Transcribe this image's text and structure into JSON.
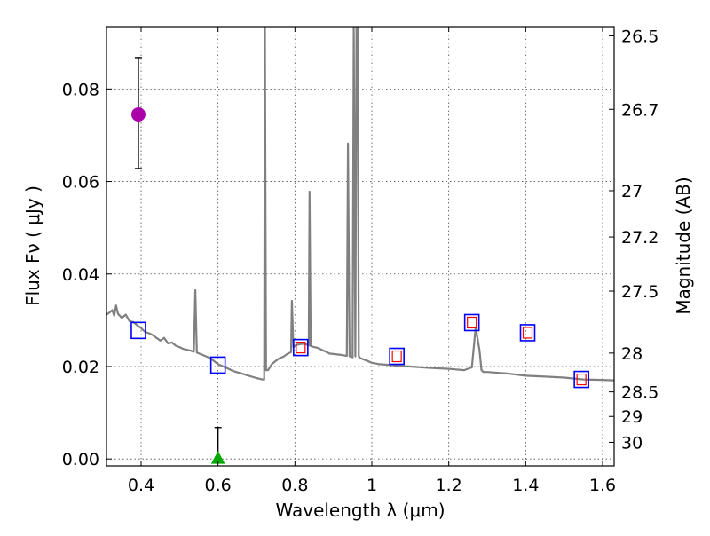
{
  "chart_data": {
    "type": "scatter",
    "xlabel": "Wavelength  λ (μm)",
    "ylabel": "Flux  Fν  ( μJy )",
    "ylabel_right": "Magnitude (AB)",
    "xlim": [
      0.31,
      1.63
    ],
    "ylim": [
      -0.0015,
      0.0935
    ],
    "grid": true,
    "x_ticks": [
      0.4,
      0.6,
      0.8,
      1.0,
      1.2,
      1.4,
      1.6
    ],
    "x_tick_labels": [
      "0.4",
      "0.6",
      "0.8",
      "1",
      "1.2",
      "1.4",
      "1.6"
    ],
    "y_ticks": [
      0.0,
      0.02,
      0.04,
      0.06,
      0.08
    ],
    "y_tick_labels": [
      "0.00",
      "0.02",
      "0.04",
      "0.06",
      "0.08"
    ],
    "right_ticks": [
      {
        "flux": 0.0915,
        "label": "26.5"
      },
      {
        "flux": 0.0756,
        "label": "26.7"
      },
      {
        "flux": 0.058,
        "label": "27"
      },
      {
        "flux": 0.048,
        "label": "27.2"
      },
      {
        "flux": 0.0363,
        "label": "27.5"
      },
      {
        "flux": 0.0229,
        "label": "28"
      },
      {
        "flux": 0.0145,
        "label": "28.5"
      },
      {
        "flux": 0.0092,
        "label": "29"
      },
      {
        "flux": 0.0036,
        "label": "30"
      }
    ],
    "model_spectrum": {
      "color": "#808080",
      "points": [
        [
          0.31,
          0.0312
        ],
        [
          0.32,
          0.0318
        ],
        [
          0.325,
          0.0322
        ],
        [
          0.33,
          0.031
        ],
        [
          0.335,
          0.0332
        ],
        [
          0.34,
          0.0314
        ],
        [
          0.35,
          0.0305
        ],
        [
          0.36,
          0.0312
        ],
        [
          0.37,
          0.0298
        ],
        [
          0.38,
          0.0296
        ],
        [
          0.39,
          0.0289
        ],
        [
          0.4,
          0.0283
        ],
        [
          0.41,
          0.0275
        ],
        [
          0.42,
          0.0272
        ],
        [
          0.43,
          0.0268
        ],
        [
          0.44,
          0.0262
        ],
        [
          0.45,
          0.0256
        ],
        [
          0.46,
          0.0262
        ],
        [
          0.47,
          0.025
        ],
        [
          0.48,
          0.0252
        ],
        [
          0.49,
          0.0245
        ],
        [
          0.5,
          0.0242
        ],
        [
          0.51,
          0.0238
        ],
        [
          0.52,
          0.0236
        ],
        [
          0.53,
          0.0234
        ],
        [
          0.537,
          0.0232
        ],
        [
          0.541,
          0.0365
        ],
        [
          0.545,
          0.023
        ],
        [
          0.56,
          0.0225
        ],
        [
          0.58,
          0.0218
        ],
        [
          0.6,
          0.0205
        ],
        [
          0.62,
          0.0198
        ],
        [
          0.64,
          0.019
        ],
        [
          0.66,
          0.0185
        ],
        [
          0.68,
          0.018
        ],
        [
          0.7,
          0.0175
        ],
        [
          0.715,
          0.0172
        ],
        [
          0.72,
          0.0172
        ],
        [
          0.722,
          0.0935
        ],
        [
          0.725,
          0.0192
        ],
        [
          0.73,
          0.0192
        ],
        [
          0.74,
          0.0205
        ],
        [
          0.75,
          0.0212
        ],
        [
          0.76,
          0.0218
        ],
        [
          0.77,
          0.0221
        ],
        [
          0.78,
          0.0227
        ],
        [
          0.79,
          0.0231
        ],
        [
          0.792,
          0.0342
        ],
        [
          0.796,
          0.0242
        ],
        [
          0.8,
          0.0245
        ],
        [
          0.81,
          0.0248
        ],
        [
          0.82,
          0.0249
        ],
        [
          0.83,
          0.0248
        ],
        [
          0.836,
          0.0245
        ],
        [
          0.838,
          0.0578
        ],
        [
          0.841,
          0.0244
        ],
        [
          0.85,
          0.0242
        ],
        [
          0.86,
          0.024
        ],
        [
          0.87,
          0.0236
        ],
        [
          0.88,
          0.0232
        ],
        [
          0.89,
          0.0228
        ],
        [
          0.9,
          0.0227
        ],
        [
          0.91,
          0.0226
        ],
        [
          0.92,
          0.0225
        ],
        [
          0.935,
          0.0223
        ],
        [
          0.938,
          0.0682
        ],
        [
          0.942,
          0.0222
        ],
        [
          0.95,
          0.022
        ],
        [
          0.953,
          0.0935
        ],
        [
          0.957,
          0.0222
        ],
        [
          0.96,
          0.0935
        ],
        [
          0.963,
          0.0935
        ],
        [
          0.966,
          0.0222
        ],
        [
          0.97,
          0.0218
        ],
        [
          0.98,
          0.0215
        ],
        [
          1.0,
          0.0208
        ],
        [
          1.02,
          0.0205
        ],
        [
          1.05,
          0.0203
        ],
        [
          1.08,
          0.0201
        ],
        [
          1.1,
          0.02
        ],
        [
          1.15,
          0.0197
        ],
        [
          1.2,
          0.0195
        ],
        [
          1.24,
          0.0192
        ],
        [
          1.26,
          0.0198
        ],
        [
          1.27,
          0.0285
        ],
        [
          1.28,
          0.0235
        ],
        [
          1.285,
          0.0192
        ],
        [
          1.29,
          0.0188
        ],
        [
          1.3,
          0.0188
        ],
        [
          1.35,
          0.0185
        ],
        [
          1.4,
          0.018
        ],
        [
          1.45,
          0.0178
        ],
        [
          1.5,
          0.0176
        ],
        [
          1.55,
          0.0172
        ],
        [
          1.6,
          0.0171
        ],
        [
          1.63,
          0.017
        ]
      ]
    },
    "synthetic_photometry": {
      "marker": "square",
      "color": "#0000ff",
      "points": [
        [
          0.393,
          0.0278
        ],
        [
          0.6,
          0.0203
        ],
        [
          0.815,
          0.0241
        ],
        [
          1.065,
          0.0222
        ],
        [
          1.26,
          0.0295
        ],
        [
          1.405,
          0.0273
        ],
        [
          1.545,
          0.0172
        ]
      ]
    },
    "observed_photometry": {
      "marker": "small square",
      "color": "#ff0000",
      "points": [
        [
          0.815,
          0.0241
        ],
        [
          1.065,
          0.0222
        ],
        [
          1.26,
          0.0295
        ],
        [
          1.405,
          0.0273
        ],
        [
          1.545,
          0.0172
        ]
      ]
    },
    "detections": [
      {
        "x": 0.393,
        "y": 0.0745,
        "yerr_low": 0.0628,
        "yerr_high": 0.0868,
        "marker": "circle",
        "color": "#aa00aa"
      }
    ],
    "upper_limits": [
      {
        "x": 0.6,
        "y": 0.0,
        "yerr_high": 0.0068,
        "marker": "triangle",
        "color": "#00aa00"
      }
    ]
  }
}
